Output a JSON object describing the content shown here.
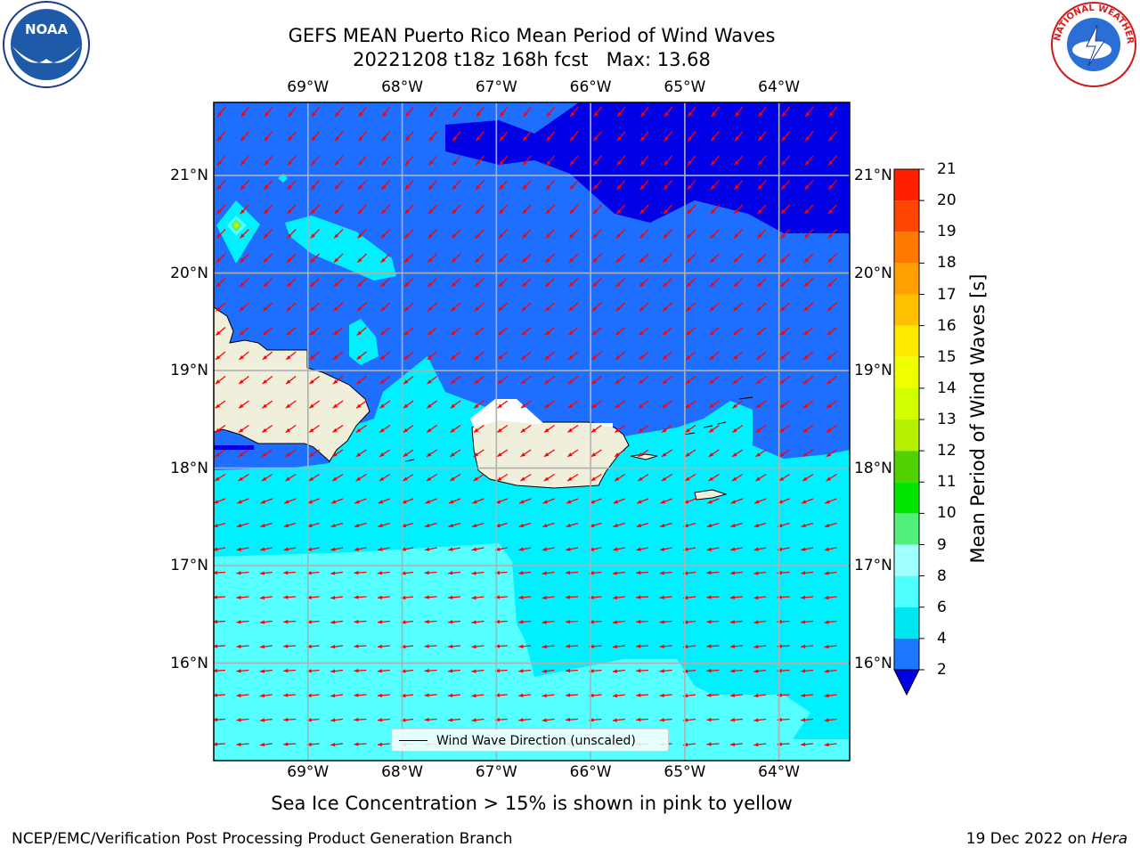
{
  "title": {
    "line1": "GEFS MEAN Puerto Rico Mean Period of Wind Waves",
    "line2": "20221208 t18z 168h fcst   Max: 13.68"
  },
  "axes": {
    "longitude_labels": [
      "69°W",
      "68°W",
      "67°W",
      "66°W",
      "65°W",
      "64°W"
    ],
    "latitude_labels": [
      "21°N",
      "20°N",
      "19°N",
      "18°N",
      "17°N",
      "16°N"
    ],
    "longitudes": [
      -69,
      -68,
      -67,
      -66,
      -65,
      -64
    ],
    "latitudes": [
      21,
      20,
      19,
      18,
      17,
      16
    ],
    "lon_range": [
      -70,
      -63.25
    ],
    "lat_range": [
      15,
      21.75
    ]
  },
  "colorbar": {
    "label": "Mean Period of Wind Waves [s]",
    "ticks": [
      "2",
      "4",
      "6",
      "8",
      "9",
      "10",
      "11",
      "12",
      "13",
      "14",
      "15",
      "16",
      "17",
      "18",
      "19",
      "20",
      "21"
    ],
    "colors": [
      "#0000e6",
      "#1e78ff",
      "#00e6f0",
      "#50ffff",
      "#a0ffff",
      "#50f07a",
      "#00e600",
      "#50d200",
      "#b4f000",
      "#d2ff00",
      "#f0ff00",
      "#ffeb00",
      "#ffc000",
      "#ffa000",
      "#ff7800",
      "#ff4600",
      "#ff2000",
      "#ff0000"
    ]
  },
  "legend": {
    "label": "Wind Wave Direction (unscaled)"
  },
  "map": {
    "ocean_colors": {
      "band_2_4": "#1e6eff",
      "band_lt2": "#0000e6",
      "band_4_6": "#00f0ff",
      "band_6_8": "#55ffff",
      "land": "#efefdb",
      "arrow": "#ff0000"
    },
    "max_point": {
      "lon": -69.75,
      "lat": 20.5,
      "value": 13.68
    }
  },
  "notes": {
    "sea_ice": "Sea Ice Concentration > 15% is shown in pink to yellow"
  },
  "footer": {
    "left": "NCEP/EMC/Verification Post Processing Product Generation Branch",
    "right_date": "19 Dec 2022 on ",
    "right_host": "Hera"
  },
  "logos": {
    "noaa_text": "NOAA",
    "nws_text": "NATIONAL WEATHER SERVICE"
  }
}
